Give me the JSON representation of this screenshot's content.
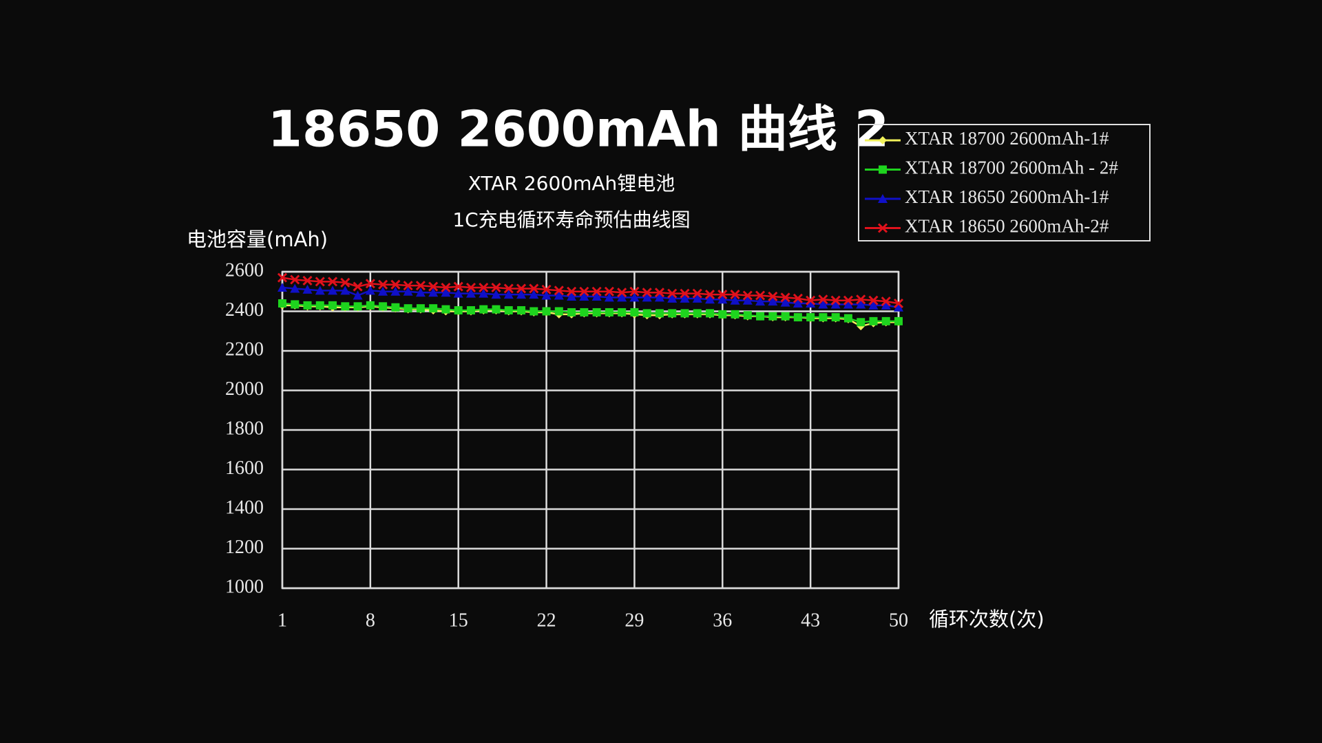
{
  "chart_data": {
    "type": "line",
    "title": "18650 2600mAh 曲线 2",
    "subtitle": [
      "XTAR 2600mAh锂电池",
      "1C充电循环寿命预估曲线图"
    ],
    "y_label": "电池容量(mAh)",
    "x_label": "循环次数(次)",
    "x": [
      1,
      2,
      3,
      4,
      5,
      6,
      7,
      8,
      9,
      10,
      11,
      12,
      13,
      14,
      15,
      16,
      17,
      18,
      19,
      20,
      21,
      22,
      23,
      24,
      25,
      26,
      27,
      28,
      29,
      30,
      31,
      32,
      33,
      34,
      35,
      36,
      37,
      38,
      39,
      40,
      41,
      42,
      43,
      44,
      45,
      46,
      47,
      48,
      49,
      50
    ],
    "xlim": [
      1,
      50
    ],
    "xticks": [
      1,
      8,
      15,
      22,
      29,
      36,
      43,
      50
    ],
    "ylim": [
      1000,
      2600
    ],
    "yticks": [
      1000,
      1200,
      1400,
      1600,
      1800,
      2000,
      2200,
      2400,
      2600
    ],
    "grid": true,
    "legend": "upper right",
    "series": [
      {
        "name": "XTAR 18700 2600mAh-1#",
        "color": "#f2f25a",
        "marker": "diamond",
        "values": [
          2430,
          2430,
          2425,
          2425,
          2420,
          2420,
          2420,
          2425,
          2420,
          2415,
          2410,
          2410,
          2405,
          2400,
          2400,
          2400,
          2405,
          2405,
          2400,
          2400,
          2395,
          2395,
          2385,
          2385,
          2390,
          2390,
          2390,
          2390,
          2385,
          2380,
          2380,
          2385,
          2385,
          2385,
          2385,
          2380,
          2380,
          2375,
          2375,
          2370,
          2370,
          2370,
          2365,
          2365,
          2365,
          2360,
          2325,
          2340,
          2345,
          2345
        ]
      },
      {
        "name": "XTAR 18700 2600mAh - 2#",
        "color": "#1ed41e",
        "marker": "square",
        "values": [
          2440,
          2435,
          2430,
          2430,
          2430,
          2425,
          2425,
          2430,
          2425,
          2420,
          2415,
          2415,
          2415,
          2410,
          2405,
          2405,
          2410,
          2410,
          2405,
          2405,
          2400,
          2400,
          2400,
          2395,
          2395,
          2395,
          2395,
          2395,
          2395,
          2390,
          2390,
          2390,
          2390,
          2390,
          2390,
          2385,
          2385,
          2380,
          2375,
          2375,
          2375,
          2370,
          2370,
          2370,
          2370,
          2365,
          2345,
          2350,
          2350,
          2350
        ]
      },
      {
        "name": "XTAR 18650 2600mAh-1#",
        "color": "#1010c8",
        "marker": "triangle",
        "values": [
          2520,
          2515,
          2510,
          2505,
          2505,
          2505,
          2480,
          2505,
          2500,
          2500,
          2500,
          2495,
          2495,
          2495,
          2490,
          2490,
          2490,
          2485,
          2485,
          2485,
          2485,
          2480,
          2480,
          2475,
          2475,
          2475,
          2470,
          2470,
          2470,
          2470,
          2470,
          2465,
          2465,
          2465,
          2460,
          2460,
          2455,
          2455,
          2450,
          2450,
          2445,
          2440,
          2440,
          2435,
          2435,
          2435,
          2435,
          2430,
          2430,
          2420
        ]
      },
      {
        "name": "XTAR 18650 2600mAh-2#",
        "color": "#e0121c",
        "marker": "x",
        "values": [
          2570,
          2560,
          2555,
          2550,
          2550,
          2545,
          2525,
          2540,
          2535,
          2535,
          2530,
          2530,
          2525,
          2520,
          2525,
          2520,
          2520,
          2520,
          2515,
          2515,
          2515,
          2510,
          2505,
          2500,
          2500,
          2500,
          2500,
          2495,
          2500,
          2495,
          2495,
          2490,
          2490,
          2490,
          2485,
          2485,
          2485,
          2480,
          2480,
          2475,
          2470,
          2465,
          2455,
          2460,
          2455,
          2455,
          2460,
          2455,
          2450,
          2440
        ]
      }
    ]
  }
}
